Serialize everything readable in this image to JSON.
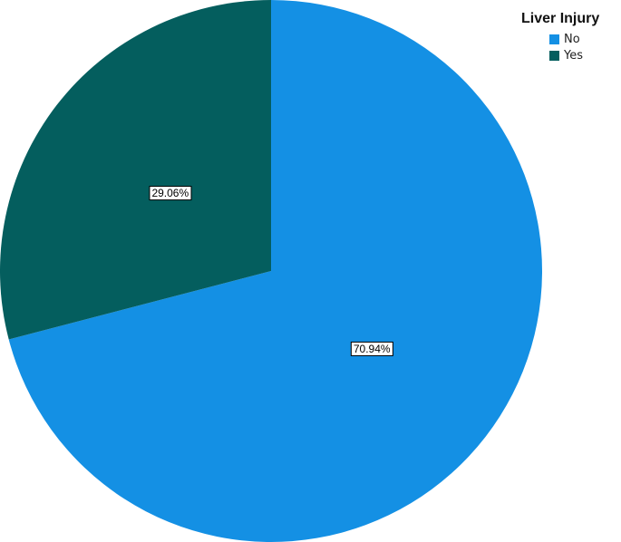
{
  "chart_data": {
    "type": "pie",
    "legend_title": "Liver Injury",
    "legend_position": "top-right",
    "slices": [
      {
        "label": "No",
        "value": 70.94,
        "display": "70.94%",
        "color": "#1490E4"
      },
      {
        "label": "Yes",
        "value": 29.06,
        "display": "29.06%",
        "color": "#045E5E"
      }
    ]
  }
}
